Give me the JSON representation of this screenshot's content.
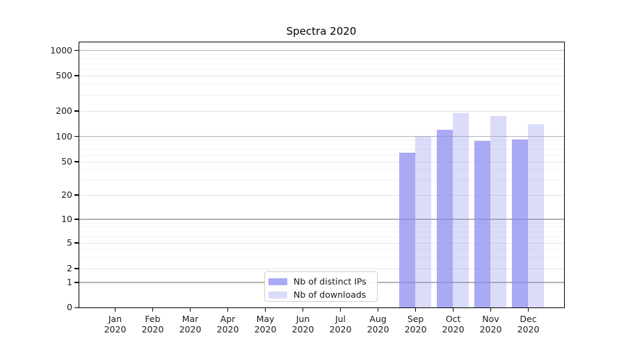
{
  "title": "Spectra 2020",
  "chart_data": {
    "type": "bar",
    "title": "Spectra 2020",
    "yscale": "symlog",
    "grid": true,
    "ylim": [
      0,
      1300
    ],
    "yticks": [
      0,
      1,
      2,
      5,
      10,
      20,
      50,
      100,
      200,
      500,
      1000
    ],
    "categories": [
      "Jan 2020",
      "Feb 2020",
      "Mar 2020",
      "Apr 2020",
      "May 2020",
      "Jun 2020",
      "Jul 2020",
      "Aug 2020",
      "Sep 2020",
      "Oct 2020",
      "Nov 2020",
      "Dec 2020"
    ],
    "series": [
      {
        "name": "Nb of distinct IPs",
        "color": "#8888f0",
        "opacity": 0.72,
        "values": [
          null,
          null,
          null,
          null,
          null,
          null,
          null,
          null,
          64,
          120,
          88,
          93
        ]
      },
      {
        "name": "Nb of downloads",
        "color": "#8888f0",
        "opacity": 0.3,
        "values": [
          null,
          null,
          null,
          null,
          null,
          null,
          null,
          null,
          100,
          190,
          175,
          140
        ]
      }
    ],
    "legend_position": "lower center-left"
  },
  "legend": {
    "item1": "Nb of distinct IPs",
    "item2": "Nb of downloads"
  }
}
